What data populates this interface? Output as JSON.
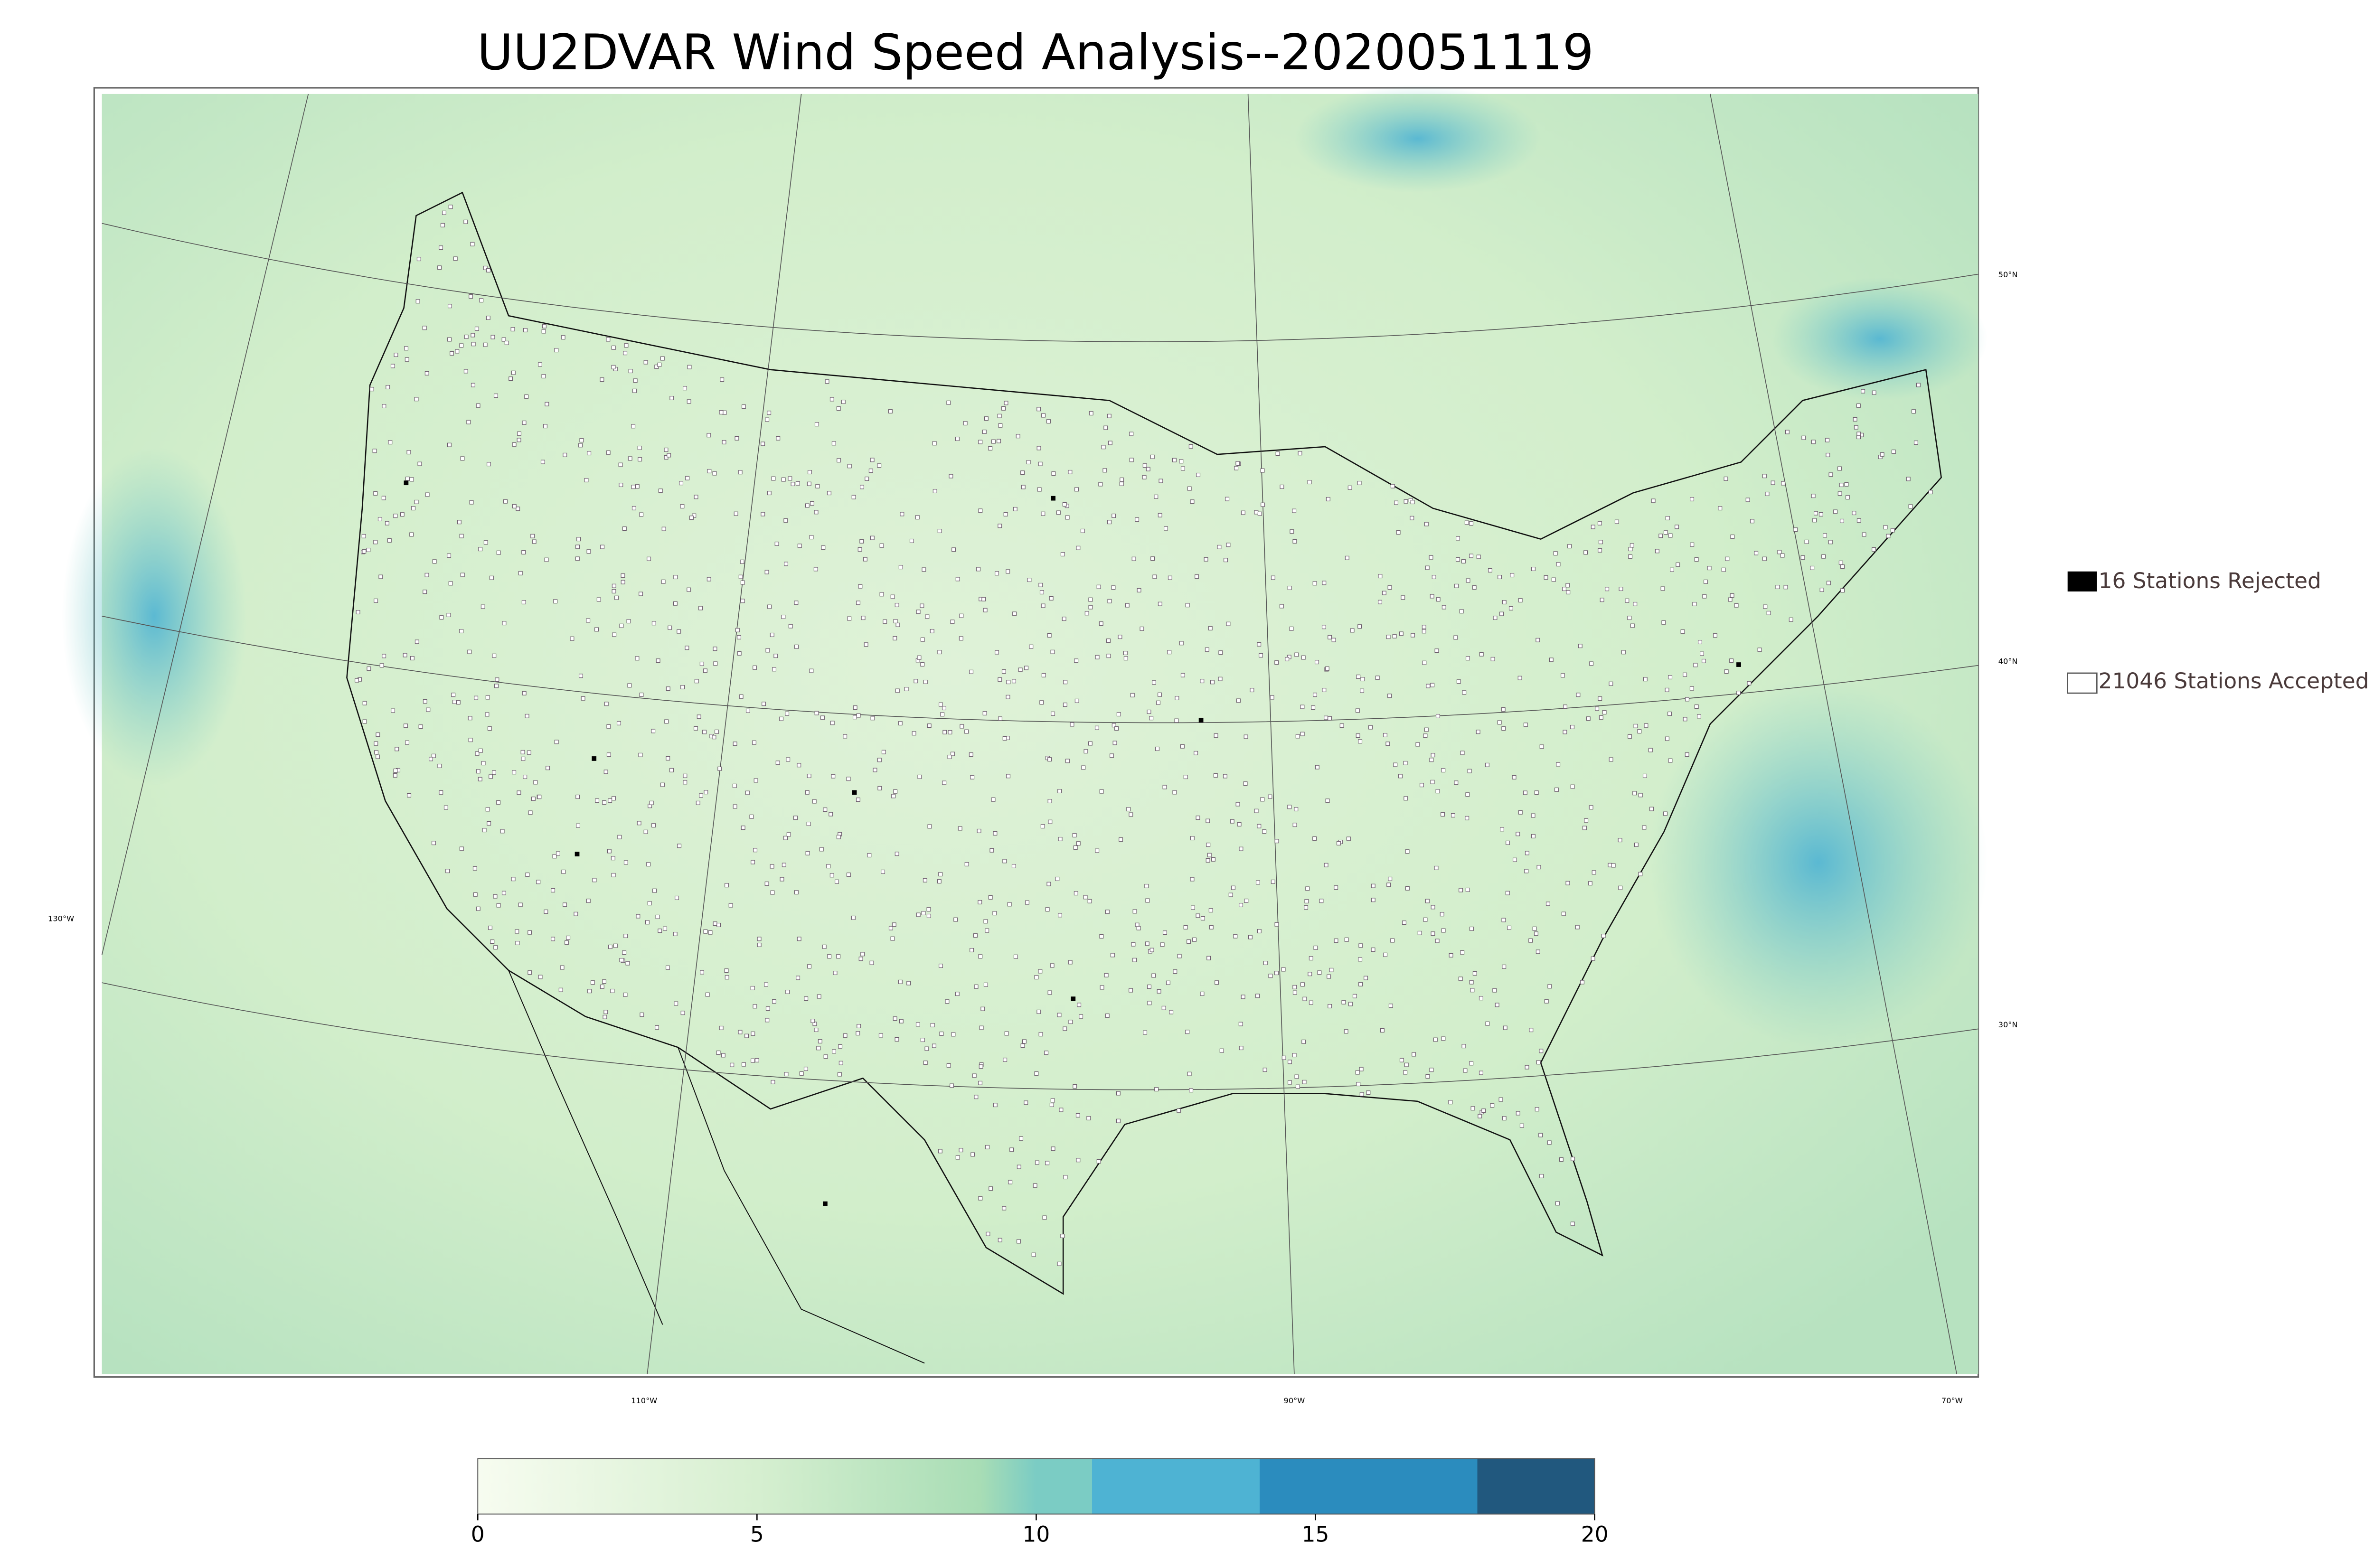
{
  "title": "UU2DVAR Wind Speed Analysis--2020051119",
  "legend": {
    "rejected": "16 Stations Rejected",
    "accepted": "21046 Stations Accepted"
  },
  "graticule": {
    "lat_labels": [
      "50°N",
      "40°N",
      "30°N"
    ],
    "lon_labels": [
      "130°W",
      "110°W",
      "90°W",
      "70°W"
    ]
  },
  "colorbar": {
    "lim": [
      0,
      20
    ],
    "ticks": [
      0,
      5,
      10,
      15,
      20
    ]
  }
}
